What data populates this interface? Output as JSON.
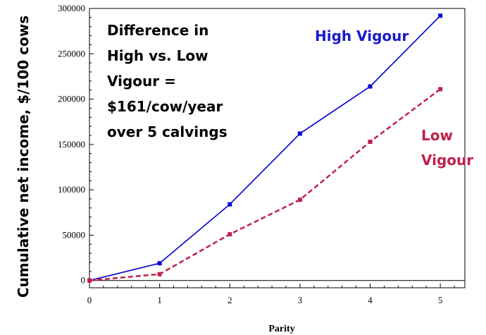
{
  "chart_data": {
    "type": "line",
    "xlabel": "Parity",
    "ylabel": "Cumulative net income, $/100 cows",
    "x": [
      0,
      1,
      2,
      3,
      4,
      5
    ],
    "xlim": [
      0,
      5.35
    ],
    "ylim": [
      -8000,
      300000
    ],
    "x_ticks": [
      "0",
      "1",
      "2",
      "3",
      "4",
      "5"
    ],
    "y_ticks": [
      "0",
      "50000",
      "100000",
      "150000",
      "200000",
      "250000",
      "300000"
    ],
    "y_tick_values": [
      0,
      50000,
      100000,
      150000,
      200000,
      250000,
      300000
    ],
    "grid": false,
    "series": [
      {
        "name": "High Vigour",
        "values": [
          0,
          19000,
          84000,
          162000,
          214000,
          292000
        ],
        "color": "#0000cc",
        "line_style": "solid"
      },
      {
        "name": "Low Vigour",
        "values": [
          0,
          7000,
          51000,
          89000,
          153000,
          211000
        ],
        "color": "#c0204a",
        "line_style": "dashed"
      }
    ],
    "annotations": {
      "difference_lines": [
        "Difference in",
        "High vs. Low",
        "Vigour =",
        "$161/cow/year",
        "over 5 calvings"
      ],
      "high_label": "High Vigour",
      "low_label_lines": [
        "Low",
        "Vigour"
      ]
    }
  }
}
